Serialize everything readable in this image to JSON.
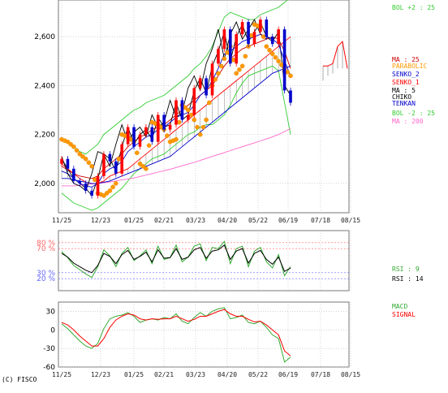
{
  "copyright": "(C) FISCO",
  "colors": {
    "grid": "#b8b8b8",
    "price": "#000000",
    "candle_up": "#ff0000",
    "candle_down": "#0000cc",
    "bollinger": "#33cc33",
    "ma25": "#cc0000",
    "ma5": "#000000",
    "ma200": "#ff66cc",
    "sar": "#ff9900",
    "senko1": "#ff0000",
    "senko2": "#0000cc",
    "chiko": "#000000",
    "tenkan": "#0000cc",
    "cloud": "#999999",
    "rsi9": "#33aa33",
    "rsi14": "#000000",
    "macd": "#33aa33",
    "signal": "#ff0000",
    "rsi_high_line": "#ff6666",
    "rsi_low_line": "#6666ff"
  },
  "chart_data": [
    {
      "type": "line",
      "panel": "price",
      "x_ticks": [
        "11/25",
        "12/23",
        "01/25",
        "02/21",
        "03/23",
        "04/20",
        "05/22",
        "06/19",
        "07/18",
        "08/15"
      ],
      "y_ticks": [
        "2,000",
        "2,200",
        "2,400",
        "2,600"
      ],
      "ylim": [
        1880,
        2750
      ],
      "grid": true,
      "legend": [
        {
          "label": "BOL +2 : 25",
          "color": "#33cc33"
        },
        {
          "label": "MA : 25",
          "color": "#cc0000"
        },
        {
          "label": "PARABOLIC",
          "color": "#ff9900"
        },
        {
          "label": "SENKO_2",
          "color": "#0000cc"
        },
        {
          "label": "SENKO_1",
          "color": "#ff0000"
        },
        {
          "label": "MA : 5",
          "color": "#000000"
        },
        {
          "label": "CHIKO",
          "color": "#000000"
        },
        {
          "label": "TENKAN",
          "color": "#0000cc"
        },
        {
          "label": "BOL -2 : 25",
          "color": "#33cc33"
        },
        {
          "label": "MA : 200",
          "color": "#ff66cc"
        }
      ],
      "series": [
        {
          "name": "MA : 25",
          "key": "ma25",
          "values": [
            2070,
            2055,
            2040,
            2030,
            2025,
            2020,
            2030,
            2060,
            2080,
            2100,
            2120,
            2150,
            2170,
            2190,
            2200,
            2220,
            2230,
            2240,
            2260,
            2280,
            2300,
            2320,
            2340,
            2360,
            2380,
            2400,
            2440,
            2480,
            2510,
            2530,
            2550,
            2560,
            2570,
            2580,
            2590,
            2600,
            2590,
            2540,
            2470
          ]
        },
        {
          "name": "MA : 5",
          "key": "ma5",
          "values": [
            2100,
            2060,
            2020,
            2000,
            1980,
            1950,
            2020,
            2120,
            2100,
            2050,
            2150,
            2230,
            2160,
            2200,
            2220,
            2180,
            2270,
            2230,
            2240,
            2330,
            2260,
            2280,
            2380,
            2430,
            2370,
            2480,
            2540,
            2620,
            2500,
            2600,
            2650,
            2580,
            2620,
            2660,
            2600,
            2580,
            2620,
            2400,
            2360
          ]
        },
        {
          "name": "BOL +2 : 25",
          "key": "bolu",
          "values": [
            2180,
            2170,
            2150,
            2130,
            2120,
            2140,
            2160,
            2200,
            2220,
            2240,
            2260,
            2280,
            2300,
            2310,
            2330,
            2340,
            2350,
            2360,
            2380,
            2400,
            2420,
            2440,
            2470,
            2490,
            2520,
            2560,
            2620,
            2680,
            2700,
            2690,
            2680,
            2670,
            2670,
            2690,
            2700,
            2710,
            2720,
            2740,
            2760
          ]
        },
        {
          "name": "BOL -2 : 25",
          "key": "boll",
          "values": [
            1960,
            1940,
            1920,
            1910,
            1900,
            1890,
            1900,
            1920,
            1940,
            1960,
            1980,
            2010,
            2040,
            2060,
            2080,
            2100,
            2110,
            2120,
            2140,
            2160,
            2180,
            2200,
            2210,
            2230,
            2240,
            2240,
            2260,
            2280,
            2320,
            2370,
            2410,
            2440,
            2450,
            2460,
            2470,
            2480,
            2460,
            2330,
            2200
          ]
        },
        {
          "name": "MA : 200",
          "key": "ma200",
          "values": [
            1990,
            1990,
            1990,
            1992,
            1995,
            1998,
            2000,
            2003,
            2006,
            2010,
            2014,
            2018,
            2022,
            2028,
            2034,
            2040,
            2046,
            2052,
            2058,
            2065,
            2072,
            2079,
            2086,
            2094,
            2102,
            2110,
            2118,
            2126,
            2134,
            2142,
            2150,
            2158,
            2166,
            2174,
            2182,
            2190,
            2200,
            2212,
            2224
          ]
        },
        {
          "name": "SENKO_1",
          "key": "senko1",
          "values": [
            2080,
            2060,
            2040,
            2020,
            2005,
            2000,
            2000,
            2010,
            2030,
            2040,
            2050,
            2060,
            2080,
            2100,
            2120,
            2140,
            2160,
            2180,
            2200,
            2220,
            2240,
            2260,
            2280,
            2300,
            2320,
            2340,
            2360,
            2380,
            2400,
            2420,
            2440,
            2460,
            2480,
            2500,
            2520,
            2540,
            2560,
            2580,
            2600
          ]
        },
        {
          "name": "SENKO_2",
          "key": "senko2",
          "values": [
            2020,
            2020,
            2015,
            2010,
            2005,
            2000,
            2000,
            2005,
            2010,
            2020,
            2030,
            2040,
            2050,
            2060,
            2070,
            2080,
            2090,
            2100,
            2110,
            2130,
            2150,
            2170,
            2190,
            2210,
            2230,
            2250,
            2270,
            2290,
            2310,
            2330,
            2350,
            2370,
            2390,
            2410,
            2430,
            2450,
            2460,
            2470,
            2480
          ]
        },
        {
          "name": "TENKAN",
          "key": "tenkan",
          "values": [
            2050,
            2040,
            2020,
            2000,
            1990,
            1985,
            2000,
            2040,
            2060,
            2070,
            2090,
            2130,
            2150,
            2170,
            2190,
            2200,
            2220,
            2230,
            2250,
            2270,
            2280,
            2290,
            2320,
            2360,
            2380,
            2420,
            2470,
            2530,
            2540,
            2560,
            2580,
            2590,
            2600,
            2610,
            2600,
            2590,
            2570,
            2500,
            2440
          ]
        },
        {
          "name": "CHIKO",
          "key": "chiko",
          "values": [
            2110,
            2040,
            2000,
            1990,
            1970,
            2040,
            2130,
            2120,
            2070,
            2160,
            2240,
            2170,
            2210,
            2230,
            2190,
            2280,
            2230,
            2250,
            2340,
            2270,
            2290,
            2390,
            2440,
            2380,
            2490,
            2550,
            2630,
            2510,
            2610,
            2660,
            2590,
            2630,
            2670,
            2610,
            2590
          ]
        },
        {
          "name": "PARABOLIC",
          "key": "sar",
          "kind": "dots",
          "values": [
            2180,
            2170,
            2150,
            2120,
            2100,
            2070,
            1960,
            1950,
            1970,
            2000,
            2200,
            2190,
            2170,
            2080,
            2060,
            2250,
            2240,
            2220,
            2170,
            2180,
            2320,
            2300,
            2260,
            2200,
            2260,
            2400,
            2450,
            2510,
            2560,
            2450,
            2480,
            2560,
            2650,
            2640,
            2560,
            2530,
            2500,
            2470,
            2440
          ]
        }
      ],
      "cloud_forward": [
        {
          "senko1": 2420,
          "senko2": 2480
        },
        {
          "senko1": 2440,
          "senko2": 2480
        },
        {
          "senko1": 2450,
          "senko2": 2490
        },
        {
          "senko1": 2470,
          "senko2": 2560
        },
        {
          "senko1": 2470,
          "senko2": 2580
        },
        {
          "senko1": 2470,
          "senko2": 2470
        }
      ],
      "candles": {
        "close": [
          2100,
          2060,
          2010,
          2000,
          1970,
          1950,
          2030,
          2120,
          2090,
          2040,
          2160,
          2230,
          2150,
          2200,
          2230,
          2170,
          2280,
          2220,
          2240,
          2340,
          2260,
          2280,
          2390,
          2430,
          2360,
          2490,
          2550,
          2630,
          2490,
          2610,
          2660,
          2570,
          2620,
          2670,
          2600,
          2570,
          2630,
          2380,
          2330
        ],
        "open": [
          2080,
          2100,
          2060,
          2010,
          2000,
          1970,
          1950,
          2030,
          2120,
          2090,
          2040,
          2160,
          2230,
          2150,
          2200,
          2230,
          2170,
          2280,
          2220,
          2240,
          2340,
          2260,
          2280,
          2390,
          2430,
          2360,
          2490,
          2550,
          2630,
          2490,
          2610,
          2660,
          2570,
          2620,
          2670,
          2600,
          2570,
          2630,
          2380
        ]
      }
    },
    {
      "type": "line",
      "panel": "rsi",
      "y_ticks": [
        "80 %",
        "70 %",
        "30 %",
        "20 %"
      ],
      "levels": [
        80,
        70,
        30,
        20
      ],
      "ylim": [
        0,
        100
      ],
      "legend": [
        {
          "label": "RSI : 9",
          "color": "#33aa33"
        },
        {
          "label": "RSI : 14",
          "color": "#000000"
        }
      ],
      "series": [
        {
          "name": "RSI : 9",
          "key": "rsi9",
          "values": [
            65,
            55,
            42,
            35,
            28,
            22,
            40,
            68,
            58,
            40,
            62,
            72,
            50,
            58,
            68,
            45,
            74,
            52,
            55,
            76,
            48,
            56,
            74,
            78,
            50,
            72,
            70,
            82,
            45,
            70,
            74,
            40,
            66,
            72,
            48,
            38,
            60,
            25,
            40
          ]
        },
        {
          "name": "RSI : 14",
          "key": "rsi14",
          "values": [
            62,
            56,
            46,
            40,
            34,
            30,
            42,
            62,
            57,
            45,
            60,
            67,
            52,
            57,
            64,
            48,
            68,
            54,
            55,
            70,
            52,
            56,
            68,
            72,
            54,
            66,
            68,
            76,
            52,
            66,
            70,
            46,
            62,
            67,
            52,
            44,
            56,
            32,
            38
          ]
        }
      ]
    },
    {
      "type": "line",
      "panel": "macd",
      "y_ticks": [
        "30",
        "0",
        "-30",
        "-60"
      ],
      "ylim": [
        -60,
        45
      ],
      "legend": [
        {
          "label": "MACD",
          "color": "#33aa33"
        },
        {
          "label": "SIGNAL",
          "color": "#ff0000"
        }
      ],
      "series": [
        {
          "name": "MACD",
          "key": "macd",
          "values": [
            10,
            2,
            -8,
            -18,
            -26,
            -30,
            -22,
            2,
            18,
            22,
            24,
            28,
            22,
            12,
            16,
            18,
            16,
            20,
            18,
            26,
            14,
            10,
            20,
            28,
            22,
            30,
            34,
            36,
            18,
            20,
            24,
            12,
            10,
            14,
            4,
            -8,
            -14,
            -52,
            -44
          ]
        },
        {
          "name": "SIGNAL",
          "key": "signal",
          "values": [
            12,
            8,
            0,
            -10,
            -18,
            -26,
            -26,
            -14,
            4,
            16,
            22,
            26,
            24,
            18,
            16,
            18,
            17,
            18,
            18,
            22,
            18,
            14,
            17,
            22,
            22,
            26,
            30,
            33,
            26,
            22,
            22,
            17,
            13,
            14,
            8,
            0,
            -8,
            -34,
            -42
          ]
        }
      ]
    }
  ]
}
